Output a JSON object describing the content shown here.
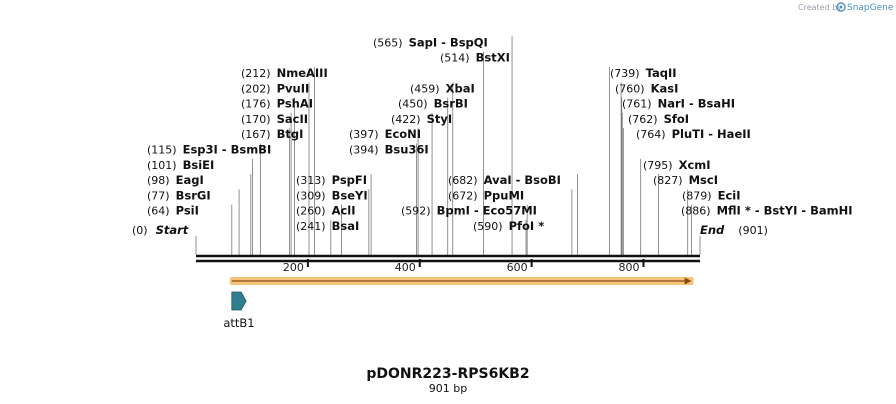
{
  "brand": {
    "created_by": "Created by",
    "name": "SnapGene"
  },
  "plasmid": {
    "name": "pDONR223-RPS6KB2",
    "length_label": "901 bp",
    "length": 901
  },
  "ticks": [
    {
      "value": 200,
      "label": "200"
    },
    {
      "value": 400,
      "label": "400"
    },
    {
      "value": 600,
      "label": "600"
    },
    {
      "value": 800,
      "label": "800"
    }
  ],
  "feature": {
    "name": "attB1",
    "start": 64,
    "end": 86
  },
  "orf": {
    "start": 64,
    "end": 886,
    "color": "#f5c47a"
  },
  "colors": {
    "feature": "#2f7f91",
    "orf": "#f5c47a"
  },
  "start_label": {
    "pos": "(0)",
    "name": "Start"
  },
  "end_label": {
    "pos": "(901)",
    "name": "End"
  },
  "sites": [
    {
      "pos": "(115)",
      "names": "Esp3I  -  BsmBI",
      "site": 115
    },
    {
      "pos": "(101)",
      "names": "BsiEI",
      "site": 101
    },
    {
      "pos": "(98)",
      "names": "EagI",
      "site": 98
    },
    {
      "pos": "(77)",
      "names": "BsrGI",
      "site": 77
    },
    {
      "pos": "(64)",
      "names": "PsiI",
      "site": 64
    },
    {
      "pos": "(212)",
      "names": "NmeAIII",
      "site": 212
    },
    {
      "pos": "(202)",
      "names": "PvuII",
      "site": 202
    },
    {
      "pos": "(176)",
      "names": "PshAI",
      "site": 176
    },
    {
      "pos": "(170)",
      "names": "SacII",
      "site": 170
    },
    {
      "pos": "(167)",
      "names": "BtgI",
      "site": 167
    },
    {
      "pos": "(313)",
      "names": "PspFI",
      "site": 313
    },
    {
      "pos": "(309)",
      "names": "BseYI",
      "site": 309
    },
    {
      "pos": "(260)",
      "names": "AclI",
      "site": 260
    },
    {
      "pos": "(241)",
      "names": "BsaI",
      "site": 241
    },
    {
      "pos": "(397)",
      "names": "EcoNI",
      "site": 397
    },
    {
      "pos": "(394)",
      "names": "Bsu36I",
      "site": 394
    },
    {
      "pos": "(422)",
      "names": "StyI",
      "site": 422
    },
    {
      "pos": "(450)",
      "names": "BsrBI",
      "site": 450
    },
    {
      "pos": "(459)",
      "names": "XbaI",
      "site": 459
    },
    {
      "pos": "(514)",
      "names": "BstXI",
      "site": 514
    },
    {
      "pos": "(565)",
      "names": "SapI  -  BspQI",
      "site": 565
    },
    {
      "pos": "(592)",
      "names": "BpmI  -  Eco57MI",
      "site": 592
    },
    {
      "pos": "(590)",
      "names": "PfoI *",
      "site": 590
    },
    {
      "pos": "(682)",
      "names": "AvaI  -  BsoBI",
      "site": 682
    },
    {
      "pos": "(672)",
      "names": "PpuMI",
      "site": 672
    },
    {
      "pos": "(739)",
      "names": "TaqII",
      "site": 739
    },
    {
      "pos": "(760)",
      "names": "KasI",
      "site": 760
    },
    {
      "pos": "(761)",
      "names": "NarI  -  BsaHI",
      "site": 761
    },
    {
      "pos": "(762)",
      "names": "SfoI",
      "site": 762
    },
    {
      "pos": "(764)",
      "names": "PluTI  -  HaeII",
      "site": 764
    },
    {
      "pos": "(795)",
      "names": "XcmI",
      "site": 795
    },
    {
      "pos": "(827)",
      "names": "MscI",
      "site": 827
    },
    {
      "pos": "(879)",
      "names": "EciI",
      "site": 879
    },
    {
      "pos": "(886)",
      "names": "MflI *  -  BstYI  -  BamHI",
      "site": 886
    }
  ]
}
